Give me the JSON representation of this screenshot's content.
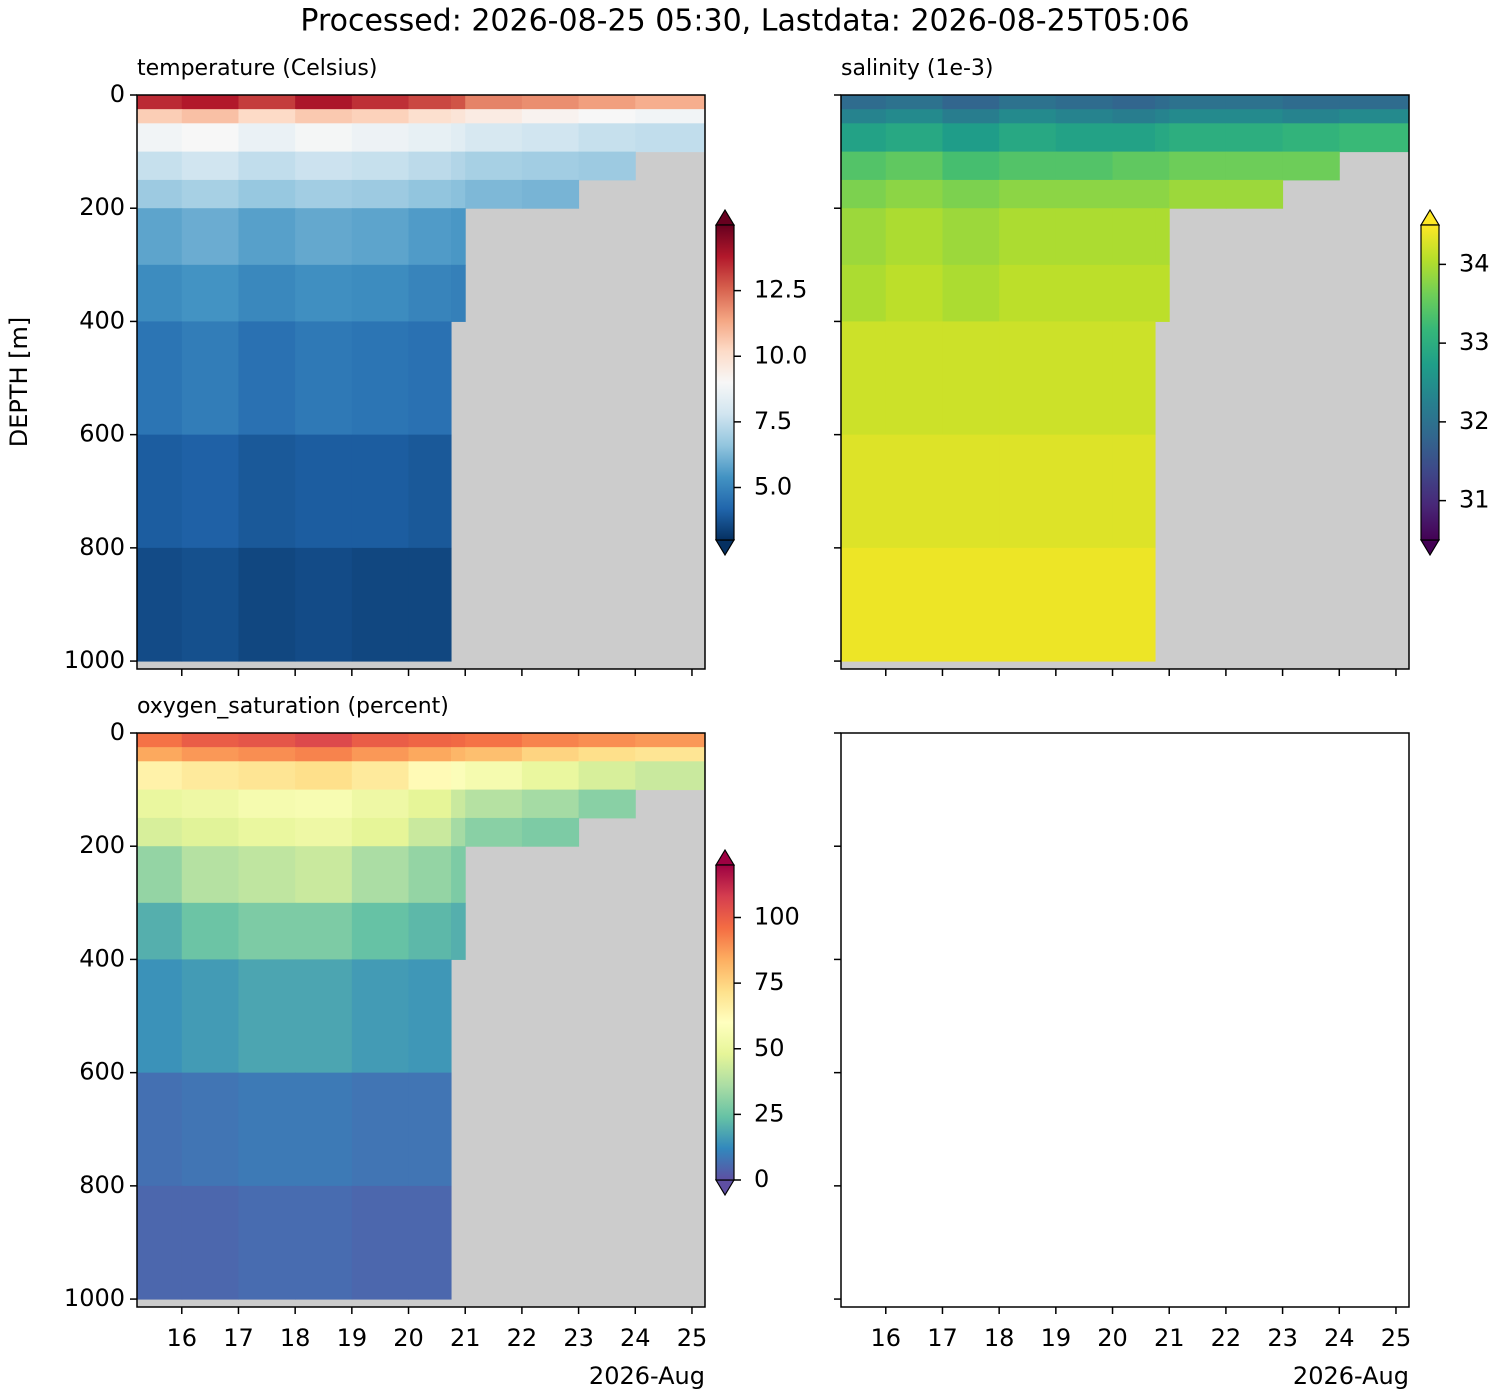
{
  "title": "Processed: 2026-08-25 05:30, Lastdata: 2026-08-25T05:06",
  "chart_data": [
    {
      "type": "heatmap",
      "title": "temperature (Celsius)",
      "ylabel": "DEPTH [m]",
      "x_edges": [
        15.21,
        16,
        17,
        18,
        19,
        20,
        20.75,
        21,
        22,
        23,
        24,
        25.23
      ],
      "y_edges": [
        0,
        25,
        50,
        100,
        150,
        200,
        300,
        400,
        600,
        800,
        1000
      ],
      "values": [
        [
          13.5,
          13.8,
          13.2,
          13.9,
          13.4,
          13.0,
          12.8,
          12.0,
          11.8,
          11.5,
          11.2
        ],
        [
          10.5,
          10.8,
          10.2,
          10.6,
          10.4,
          10.0,
          9.8,
          9.5,
          9.2,
          9.0,
          8.8
        ],
        [
          8.8,
          9.0,
          8.6,
          8.9,
          8.7,
          8.5,
          8.3,
          8.0,
          7.8,
          7.6,
          7.5
        ],
        [
          7.6,
          7.8,
          7.5,
          7.7,
          7.6,
          7.4,
          7.2,
          7.0,
          6.9,
          6.8,
          null
        ],
        [
          6.8,
          7.0,
          6.7,
          6.9,
          6.8,
          6.6,
          6.5,
          6.3,
          6.2,
          null,
          null
        ],
        [
          5.8,
          6.0,
          5.7,
          5.9,
          5.8,
          5.6,
          5.5,
          null,
          null,
          null,
          null
        ],
        [
          5.2,
          5.4,
          5.1,
          5.3,
          5.2,
          5.0,
          4.9,
          null,
          null,
          null,
          null
        ],
        [
          4.6,
          4.8,
          4.5,
          4.7,
          4.6,
          4.5,
          null,
          null,
          null,
          null,
          null
        ],
        [
          4.0,
          4.1,
          3.9,
          4.0,
          4.0,
          3.9,
          null,
          null,
          null,
          null,
          null
        ],
        [
          3.6,
          3.7,
          3.5,
          3.6,
          3.5,
          3.5,
          null,
          null,
          null,
          null,
          null
        ]
      ],
      "xlim": [
        15.21,
        25.23
      ],
      "ylim": [
        1014,
        0
      ],
      "xticks": [
        16,
        17,
        18,
        19,
        20,
        21,
        22,
        23,
        24,
        25
      ],
      "yticks": [
        0,
        200,
        400,
        600,
        800,
        1000
      ],
      "xtick_labels": false,
      "ytick_labels": true,
      "background": "#cccccc",
      "colormap": [
        "#053061",
        "#2166ac",
        "#4393c3",
        "#92c5de",
        "#d1e5f0",
        "#f7f7f7",
        "#fddbc7",
        "#f4a582",
        "#d6604d",
        "#b2182b",
        "#67001f"
      ],
      "clim": [
        3,
        15
      ],
      "colorbar_ticks": [
        {
          "value": 5,
          "label": "5.0"
        },
        7.5,
        {
          "value": 10,
          "label": "10.0"
        },
        12.5
      ]
    },
    {
      "type": "heatmap",
      "title": "salinity (1e-3)",
      "x_edges": [
        15.21,
        16,
        17,
        18,
        19,
        20,
        20.75,
        21,
        22,
        23,
        24,
        25.23
      ],
      "y_edges": [
        0,
        25,
        50,
        100,
        150,
        200,
        300,
        400,
        600,
        800,
        1000
      ],
      "values": [
        [
          31.9,
          32.0,
          31.8,
          32.0,
          31.9,
          31.8,
          31.9,
          32.0,
          32.0,
          31.9,
          31.9
        ],
        [
          32.3,
          32.4,
          32.2,
          32.4,
          32.3,
          32.2,
          32.3,
          32.4,
          32.4,
          32.3,
          32.4
        ],
        [
          32.8,
          32.9,
          32.7,
          32.9,
          32.8,
          32.8,
          32.9,
          33.0,
          33.0,
          33.1,
          33.2
        ],
        [
          33.4,
          33.5,
          33.3,
          33.4,
          33.4,
          33.5,
          33.5,
          33.6,
          33.6,
          33.6,
          null
        ],
        [
          33.7,
          33.8,
          33.7,
          33.8,
          33.8,
          33.8,
          33.8,
          33.9,
          33.9,
          null,
          null
        ],
        [
          33.9,
          34.0,
          33.9,
          34.0,
          34.0,
          34.0,
          34.0,
          null,
          null,
          null,
          null
        ],
        [
          34.0,
          34.1,
          34.0,
          34.1,
          34.1,
          34.1,
          34.1,
          null,
          null,
          null,
          null
        ],
        [
          34.2,
          34.2,
          34.2,
          34.2,
          34.2,
          34.2,
          null,
          null,
          null,
          null,
          null
        ],
        [
          34.3,
          34.3,
          34.3,
          34.3,
          34.3,
          34.3,
          null,
          null,
          null,
          null,
          null
        ],
        [
          34.4,
          34.4,
          34.4,
          34.4,
          34.4,
          34.4,
          null,
          null,
          null,
          null,
          null
        ]
      ],
      "xlim": [
        15.21,
        25.23
      ],
      "ylim": [
        1014,
        0
      ],
      "xticks": [
        16,
        17,
        18,
        19,
        20,
        21,
        22,
        23,
        24,
        25
      ],
      "yticks": [
        0,
        200,
        400,
        600,
        800,
        1000
      ],
      "xtick_labels": false,
      "ytick_labels": false,
      "background": "#cccccc",
      "colormap": [
        "#440154",
        "#482878",
        "#3e4989",
        "#31688e",
        "#26828e",
        "#1f9e89",
        "#35b779",
        "#6ece58",
        "#b5de2b",
        "#fde725"
      ],
      "clim": [
        30.5,
        34.5
      ],
      "colorbar_ticks": [
        31,
        32,
        33,
        34
      ]
    },
    {
      "type": "heatmap",
      "title": "oxygen_saturation (percent)",
      "xlabel": "2026-Aug",
      "x_edges": [
        15.21,
        16,
        17,
        18,
        19,
        20,
        20.75,
        21,
        22,
        23,
        24,
        25.23
      ],
      "y_edges": [
        0,
        25,
        50,
        100,
        150,
        200,
        300,
        400,
        600,
        800,
        1000
      ],
      "values": [
        [
          95,
          100,
          102,
          105,
          100,
          98,
          97,
          95,
          92,
          90,
          88
        ],
        [
          85,
          88,
          90,
          92,
          88,
          85,
          82,
          80,
          75,
          72,
          70
        ],
        [
          65,
          68,
          70,
          72,
          68,
          62,
          58,
          55,
          50,
          45,
          42
        ],
        [
          50,
          52,
          55,
          56,
          52,
          48,
          42,
          38,
          35,
          30,
          null
        ],
        [
          45,
          47,
          50,
          52,
          48,
          42,
          35,
          30,
          28,
          null,
          null
        ],
        [
          32,
          38,
          40,
          42,
          36,
          32,
          28,
          null,
          null,
          null,
          null
        ],
        [
          20,
          25,
          28,
          28,
          24,
          22,
          20,
          null,
          null,
          null,
          null
        ],
        [
          14,
          16,
          18,
          18,
          16,
          15,
          null,
          null,
          null,
          null,
          null
        ],
        [
          7,
          8,
          9,
          9,
          8,
          8,
          null,
          null,
          null,
          null,
          null
        ],
        [
          5,
          5,
          6,
          6,
          5,
          5,
          null,
          null,
          null,
          null,
          null
        ]
      ],
      "xlim": [
        15.21,
        25.23
      ],
      "ylim": [
        1014,
        0
      ],
      "xticks": [
        16,
        17,
        18,
        19,
        20,
        21,
        22,
        23,
        24,
        25
      ],
      "yticks": [
        0,
        200,
        400,
        600,
        800,
        1000
      ],
      "xtick_labels": true,
      "ytick_labels": true,
      "background": "#cccccc",
      "colormap": [
        "#5e4fa2",
        "#3288bd",
        "#66c2a5",
        "#abdda4",
        "#e6f598",
        "#ffffbf",
        "#fee08b",
        "#fdae61",
        "#f46d43",
        "#d53e4f",
        "#9e0142"
      ],
      "clim": [
        0,
        120
      ],
      "colorbar_ticks": [
        0,
        25,
        50,
        75,
        100
      ]
    },
    {
      "type": "empty",
      "xlabel": "2026-Aug",
      "xlim": [
        15.21,
        25.23
      ],
      "ylim": [
        1014,
        0
      ],
      "xticks": [
        16,
        17,
        18,
        19,
        20,
        21,
        22,
        23,
        24,
        25
      ],
      "yticks": [
        0,
        200,
        400,
        600,
        800,
        1000
      ],
      "xtick_labels": true,
      "ytick_labels": false
    }
  ]
}
